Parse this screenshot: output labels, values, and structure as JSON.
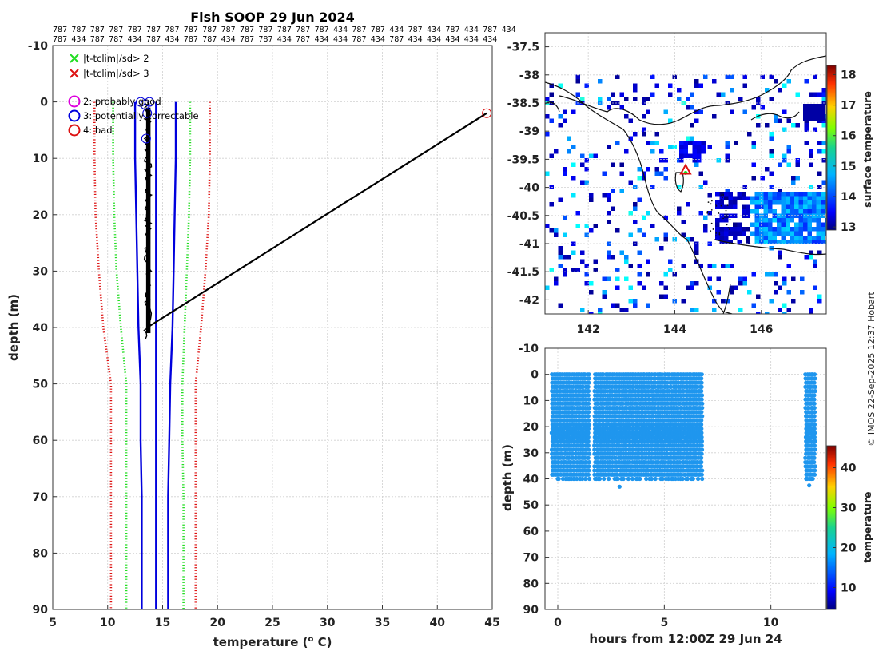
{
  "title": "Fish SOOP 29 Jun 2024",
  "id_rows": [
    [
      "787",
      "787",
      "787",
      "787",
      "787",
      "787",
      "787",
      "787",
      "787",
      "787",
      "787",
      "787",
      "787",
      "787",
      "787",
      "434",
      "787",
      "787",
      "434",
      "787",
      "434",
      "787",
      "434",
      "787",
      "434"
    ],
    [
      "787",
      "434",
      "787",
      "787",
      "434",
      "787",
      "434",
      "787",
      "787",
      "434",
      "787",
      "787",
      "434",
      "787",
      "434",
      "434",
      "787",
      "434",
      "787",
      "434",
      "434",
      "434",
      "434",
      "434"
    ]
  ],
  "colors": {
    "green": "#22dd22",
    "red": "#dd1111",
    "blue": "#0000dd",
    "magenta": "#dd00dd",
    "black": "#000000",
    "profile_blue": "#1f96ee",
    "grid": "#d0d0d0",
    "coast": "#111111"
  },
  "chart_data": [
    {
      "id": "profile",
      "type": "line",
      "xlabel": "temperature (",
      "xlabel_sup": "o",
      "xlabel_end": " C)",
      "ylabel": "depth (m)",
      "xlim": [
        5,
        45
      ],
      "ylim": [
        -10,
        90
      ],
      "xticks": [
        5,
        10,
        15,
        20,
        25,
        30,
        35,
        40,
        45
      ],
      "yticks": [
        -10,
        0,
        10,
        20,
        30,
        40,
        50,
        60,
        70,
        80,
        90
      ],
      "legend": [
        {
          "label": "|t-tclim|/sd> 2",
          "marker": "x",
          "color": "#22dd22"
        },
        {
          "label": "|t-tclim|/sd> 3",
          "marker": "x",
          "color": "#dd1111"
        },
        {
          "label": "2: probably good",
          "marker": "o",
          "color": "#dd00dd"
        },
        {
          "label": "3: potentially correctable",
          "marker": "o",
          "color": "#0000dd"
        },
        {
          "label": "4: bad",
          "marker": "o",
          "color": "#dd1111"
        }
      ],
      "series": [
        {
          "name": "clim_mean_minus_sd",
          "style": "solid",
          "color": "#0000dd",
          "points": [
            [
              12.5,
              0
            ],
            [
              12.5,
              10
            ],
            [
              12.6,
              20
            ],
            [
              12.7,
              30
            ],
            [
              12.8,
              40
            ],
            [
              13.0,
              50
            ],
            [
              13.0,
              60
            ],
            [
              13.1,
              70
            ],
            [
              13.1,
              80
            ],
            [
              13.1,
              90
            ]
          ]
        },
        {
          "name": "clim_mean_plus_sd",
          "style": "solid",
          "color": "#0000dd",
          "points": [
            [
              16.2,
              0
            ],
            [
              16.2,
              10
            ],
            [
              16.1,
              20
            ],
            [
              16.0,
              30
            ],
            [
              15.9,
              40
            ],
            [
              15.7,
              50
            ],
            [
              15.6,
              60
            ],
            [
              15.5,
              70
            ],
            [
              15.5,
              80
            ],
            [
              15.5,
              90
            ]
          ]
        },
        {
          "name": "clim_mean",
          "style": "solid",
          "color": "#0000dd",
          "points": [
            [
              14.4,
              0
            ],
            [
              14.4,
              10
            ],
            [
              14.4,
              20
            ],
            [
              14.4,
              30
            ],
            [
              14.4,
              40
            ],
            [
              14.4,
              50
            ],
            [
              14.4,
              60
            ],
            [
              14.4,
              70
            ],
            [
              14.4,
              80
            ],
            [
              14.4,
              90
            ]
          ]
        },
        {
          "name": "clim_minus_2sd",
          "style": "dotted",
          "color": "#22dd22",
          "points": [
            [
              10.5,
              0
            ],
            [
              10.5,
              10
            ],
            [
              10.6,
              20
            ],
            [
              10.8,
              30
            ],
            [
              11.2,
              40
            ],
            [
              11.7,
              50
            ],
            [
              11.7,
              60
            ],
            [
              11.7,
              70
            ],
            [
              11.7,
              80
            ],
            [
              11.7,
              90
            ]
          ]
        },
        {
          "name": "clim_plus_2sd",
          "style": "dotted",
          "color": "#22dd22",
          "points": [
            [
              17.5,
              0
            ],
            [
              17.5,
              10
            ],
            [
              17.4,
              20
            ],
            [
              17.2,
              30
            ],
            [
              17.0,
              40
            ],
            [
              16.8,
              50
            ],
            [
              16.8,
              60
            ],
            [
              16.9,
              70
            ],
            [
              16.9,
              80
            ],
            [
              16.9,
              90
            ]
          ]
        },
        {
          "name": "clim_minus_3sd",
          "style": "dotted",
          "color": "#dd1111",
          "points": [
            [
              8.8,
              0
            ],
            [
              8.8,
              10
            ],
            [
              8.9,
              20
            ],
            [
              9.2,
              30
            ],
            [
              9.6,
              40
            ],
            [
              10.3,
              50
            ],
            [
              10.3,
              60
            ],
            [
              10.3,
              70
            ],
            [
              10.3,
              80
            ],
            [
              10.3,
              90
            ]
          ]
        },
        {
          "name": "clim_plus_3sd",
          "style": "dotted",
          "color": "#dd1111",
          "points": [
            [
              19.3,
              0
            ],
            [
              19.3,
              10
            ],
            [
              19.2,
              20
            ],
            [
              18.9,
              30
            ],
            [
              18.5,
              40
            ],
            [
              18.0,
              50
            ],
            [
              18.0,
              60
            ],
            [
              18.0,
              70
            ],
            [
              18.0,
              80
            ],
            [
              18.0,
              90
            ]
          ]
        },
        {
          "name": "profile_to_bad",
          "style": "solid",
          "color": "#000000",
          "points": [
            [
              13.6,
              40
            ],
            [
              44.5,
              2
            ]
          ]
        }
      ],
      "flags": [
        {
          "flag": "2: probably good",
          "color": "#dd00dd",
          "points": []
        },
        {
          "flag": "3: potentially correctable",
          "color": "#0000dd",
          "points": [
            [
              13.0,
              0
            ],
            [
              13.4,
              0.5
            ],
            [
              13.8,
              0
            ],
            [
              13.6,
              2
            ],
            [
              13.5,
              6.5
            ]
          ]
        },
        {
          "flag": "4: bad",
          "color": "#dd1111",
          "points": [
            [
              44.5,
              2
            ]
          ]
        }
      ],
      "profile_band": {
        "tmin": 13.3,
        "tmax": 14.0,
        "depth_top": 0,
        "depth_bottom": 42
      }
    },
    {
      "id": "sst_map",
      "type": "heatmap",
      "xlim": [
        141,
        147.5
      ],
      "ylim": [
        -42.25,
        -37.25
      ],
      "xticks": [
        142,
        144,
        146
      ],
      "yticks": [
        -37.5,
        -38,
        -38.5,
        -39,
        -39.5,
        -40,
        -40.5,
        -41,
        -41.5,
        -42
      ],
      "xticklabels": [
        "142",
        "144",
        "146"
      ],
      "yticklabels": [
        "-37.5",
        "-38",
        "-38.5",
        "-39",
        "-39.5",
        "-40",
        "-40.5",
        "-41",
        "-41.5",
        "-42"
      ],
      "colorbar_label": "surface temperature",
      "colorbar_ticks": [
        13,
        14,
        15,
        16,
        17,
        18
      ],
      "colorbar_range": [
        12.9,
        18.3
      ],
      "marker": {
        "lon": 144.25,
        "lat": -39.7,
        "symbol": "triangle"
      }
    },
    {
      "id": "depth_time",
      "type": "scatter",
      "xlabel": "hours from 12:00Z 29 Jun 24",
      "ylabel": "depth (m)",
      "xlim": [
        -0.6,
        12.6
      ],
      "ylim": [
        -10,
        90
      ],
      "xticks": [
        0,
        5,
        10
      ],
      "yticks": [
        -10,
        0,
        10,
        20,
        30,
        40,
        50,
        60,
        70,
        80,
        90
      ],
      "colorbar_label": "temperature",
      "colorbar_ticks": [
        10,
        20,
        30,
        40
      ],
      "colorbar_range": [
        4.5,
        45.5
      ],
      "point_color": "#1f96ee",
      "time_ranges": [
        [
          -0.3,
          1.5
        ],
        [
          1.7,
          6.8
        ],
        [
          11.6,
          12.1
        ]
      ],
      "depth_max": 40
    }
  ],
  "credit": "© IMOS 22-Sep-2025 12:37 Hobart"
}
